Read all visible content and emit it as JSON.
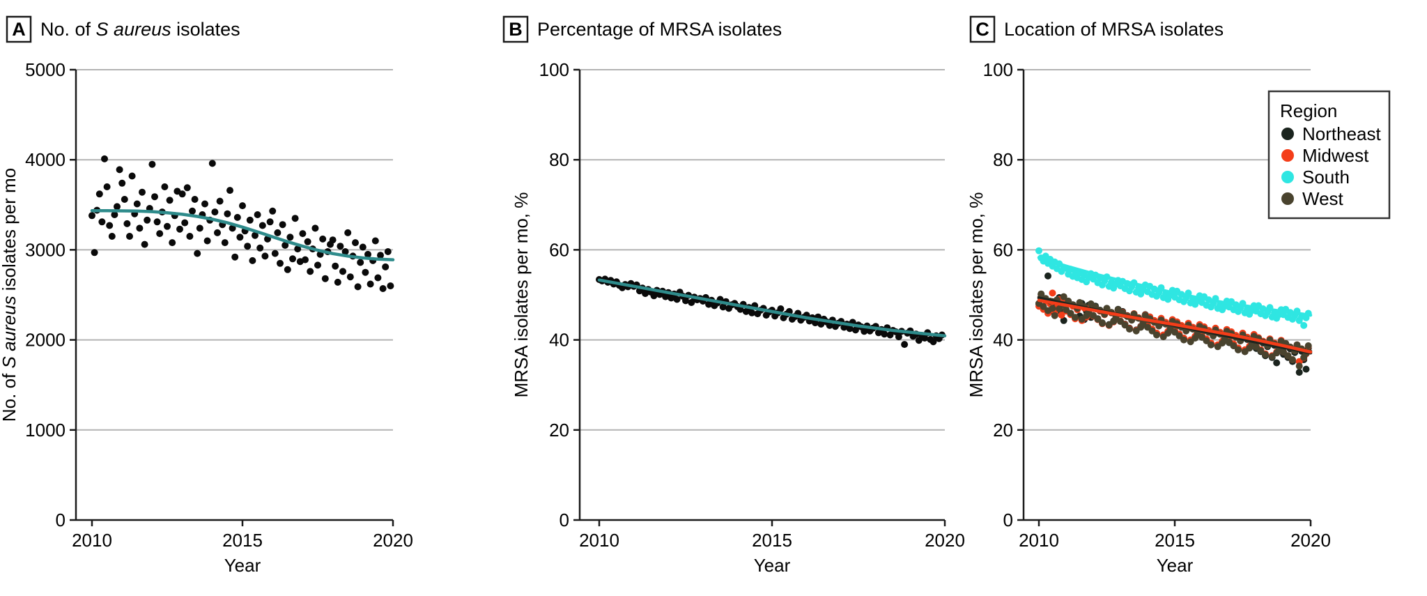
{
  "chart_data": [
    {
      "panel": "A",
      "type": "scatter",
      "title_parts": [
        {
          "t": "No. of "
        },
        {
          "t": "S aureus",
          "i": true
        },
        {
          "t": " isolates"
        }
      ],
      "xlabel": "Year",
      "ylabel_parts": [
        {
          "t": "No. of "
        },
        {
          "t": "S aureus",
          "i": true
        },
        {
          "t": " isolates per mo"
        }
      ],
      "xlim": [
        2010,
        2020
      ],
      "ylim": [
        0,
        5000
      ],
      "xticks": [
        2010,
        2015,
        2020
      ],
      "yticks": [
        0,
        1000,
        2000,
        3000,
        4000,
        5000
      ],
      "grid": true,
      "point_color": "#0a0a0a",
      "trend_color": "#2e8b8b",
      "x_start": 2010,
      "x_step": 0.0833333,
      "points": [
        3380,
        2970,
        3440,
        3620,
        3310,
        4010,
        3700,
        3270,
        3150,
        3390,
        3480,
        3890,
        3740,
        3560,
        3290,
        3150,
        3820,
        3400,
        3510,
        3240,
        3640,
        3060,
        3330,
        3460,
        3950,
        3590,
        3310,
        3180,
        3420,
        3700,
        3260,
        3550,
        3080,
        3380,
        3650,
        3230,
        3620,
        3300,
        3690,
        3150,
        3430,
        3560,
        2960,
        3240,
        3390,
        3510,
        3100,
        3330,
        3960,
        3420,
        3190,
        3540,
        3280,
        3080,
        3400,
        3660,
        3240,
        2920,
        3360,
        3140,
        3490,
        3210,
        3040,
        3330,
        2880,
        3160,
        3390,
        3020,
        3270,
        2930,
        3120,
        3310,
        3430,
        2960,
        3190,
        2850,
        3280,
        3050,
        2780,
        3140,
        2900,
        3350,
        3010,
        2870,
        3180,
        2890,
        3090,
        2760,
        3010,
        3240,
        2830,
        2950,
        3120,
        2680,
        2980,
        3060,
        3110,
        2820,
        2640,
        3040,
        2760,
        2980,
        3190,
        2700,
        2930,
        3080,
        2590,
        2860,
        3030,
        2750,
        2950,
        2620,
        2880,
        3100,
        2690,
        2940,
        2570,
        2810,
        2980,
        2600
      ],
      "trend": {
        "x_start": 2010,
        "x_step": 0.5,
        "values": [
          3435,
          3435,
          3433,
          3430,
          3424,
          3412,
          3395,
          3371,
          3340,
          3300,
          3252,
          3200,
          3145,
          3090,
          3040,
          2995,
          2958,
          2930,
          2910,
          2897,
          2890
        ]
      }
    },
    {
      "panel": "B",
      "type": "scatter",
      "title_parts": [
        {
          "t": "Percentage of MRSA isolates"
        }
      ],
      "xlabel": "Year",
      "ylabel_parts": [
        {
          "t": "MRSA isolates per mo, %"
        }
      ],
      "xlim": [
        2010,
        2020
      ],
      "ylim": [
        0,
        100
      ],
      "xticks": [
        2010,
        2015,
        2020
      ],
      "yticks": [
        0,
        20,
        40,
        60,
        80,
        100
      ],
      "grid": true,
      "point_color": "#0a0a0a",
      "trend_color": "#2e8b8b",
      "x_start": 2010,
      "x_step": 0.0833333,
      "points": [
        53.4,
        53.1,
        53.5,
        52.8,
        53.2,
        52.4,
        52.9,
        52.1,
        51.6,
        52.3,
        51.8,
        52.5,
        51.9,
        52.2,
        50.9,
        51.5,
        50.3,
        51.2,
        50.6,
        49.8,
        51.0,
        50.1,
        50.8,
        49.6,
        50.5,
        49.3,
        50.2,
        49.0,
        50.6,
        49.7,
        48.7,
        49.9,
        48.3,
        49.5,
        48.9,
        49.2,
        48.6,
        49.4,
        47.9,
        48.8,
        47.6,
        48.2,
        49.0,
        47.3,
        48.5,
        47.0,
        47.8,
        48.1,
        47.4,
        46.8,
        47.9,
        46.3,
        47.2,
        46.0,
        47.6,
        45.8,
        46.6,
        47.0,
        45.5,
        46.2,
        46.6,
        45.3,
        46.0,
        46.9,
        44.9,
        45.7,
        46.3,
        44.6,
        45.2,
        45.9,
        44.4,
        45.0,
        45.5,
        44.2,
        44.9,
        43.8,
        45.1,
        43.5,
        44.6,
        44.0,
        43.2,
        44.4,
        43.0,
        43.7,
        44.1,
        42.8,
        43.5,
        42.5,
        43.9,
        42.2,
        43.3,
        42.9,
        41.9,
        43.1,
        42.0,
        42.6,
        43.0,
        41.6,
        42.3,
        41.3,
        42.7,
        41.1,
        42.1,
        41.8,
        40.7,
        41.9,
        39.0,
        41.5,
        42.0,
        40.8,
        41.3,
        39.9,
        41.0,
        40.4,
        41.6,
        40.1,
        39.6,
        40.9,
        40.3,
        41.1
      ],
      "trend": {
        "x_start": 2010,
        "x_step": 0.5,
        "values": [
          53.3,
          52.6,
          51.9,
          51.2,
          50.5,
          49.8,
          49.1,
          48.4,
          47.7,
          47.0,
          46.3,
          45.6,
          44.9,
          44.3,
          43.7,
          43.1,
          42.6,
          42.1,
          41.7,
          41.3,
          40.9
        ]
      }
    },
    {
      "panel": "C",
      "type": "scatter",
      "title_parts": [
        {
          "t": "Location of MRSA isolates"
        }
      ],
      "xlabel": "Year",
      "ylabel_parts": [
        {
          "t": "MRSA isolates per mo, %"
        }
      ],
      "xlim": [
        2010,
        2020
      ],
      "ylim": [
        0,
        100
      ],
      "xticks": [
        2010,
        2015,
        2020
      ],
      "yticks": [
        0,
        20,
        40,
        60,
        80,
        100
      ],
      "grid": true,
      "legend": {
        "title": "Region",
        "position": "top-right"
      },
      "x_start": 2010,
      "x_step": 0.0833333,
      "series": [
        {
          "name": "Northeast",
          "color": "#1b241e",
          "points": [
            48.0,
            50.1,
            47.2,
            49.0,
            54.2,
            46.4,
            48.5,
            45.8,
            47.6,
            49.4,
            46.1,
            44.3,
            46.7,
            48.6,
            45.9,
            47.8,
            44.9,
            47.0,
            45.3,
            48.1,
            44.5,
            46.4,
            47.7,
            45.0,
            45.4,
            47.5,
            44.7,
            46.6,
            43.8,
            45.8,
            47.0,
            43.4,
            46.1,
            44.2,
            45.1,
            46.8,
            44.2,
            46.3,
            43.5,
            45.4,
            42.6,
            44.6,
            45.8,
            42.2,
            44.9,
            43.0,
            43.9,
            45.6,
            43.0,
            45.1,
            42.3,
            44.2,
            41.4,
            43.4,
            44.6,
            41.0,
            43.7,
            41.8,
            42.7,
            44.4,
            41.8,
            43.9,
            41.1,
            43.0,
            40.2,
            42.2,
            43.4,
            39.8,
            42.5,
            40.6,
            41.5,
            43.2,
            40.6,
            42.7,
            39.9,
            41.8,
            39.0,
            41.0,
            42.2,
            38.6,
            41.3,
            39.4,
            40.3,
            42.0,
            39.4,
            41.5,
            38.7,
            40.6,
            37.8,
            39.8,
            41.0,
            37.4,
            40.1,
            38.2,
            39.1,
            40.8,
            38.1,
            40.2,
            37.4,
            39.3,
            36.5,
            38.5,
            39.7,
            36.1,
            38.8,
            34.9,
            37.8,
            39.5,
            36.8,
            38.9,
            36.1,
            38.0,
            35.2,
            37.2,
            38.4,
            32.8,
            37.5,
            35.6,
            33.5,
            38.2
          ],
          "trend": {
            "x_start": 2010,
            "x_step": 1,
            "values": [
              49.3,
              48.0,
              46.8,
              45.6,
              44.4,
              43.2,
              42.0,
              40.8,
              39.5,
              38.3,
              37.1
            ]
          }
        },
        {
          "name": "Midwest",
          "color": "#f43d19",
          "points": [
            47.5,
            49.6,
            46.8,
            48.6,
            45.9,
            48.0,
            50.4,
            46.3,
            47.2,
            49.0,
            45.5,
            48.3,
            46.4,
            48.3,
            45.6,
            47.5,
            44.7,
            46.7,
            48.0,
            44.3,
            47.1,
            45.1,
            46.0,
            47.7,
            45.3,
            47.2,
            44.5,
            46.4,
            43.6,
            45.6,
            46.9,
            43.2,
            46.0,
            44.0,
            44.9,
            46.6,
            44.2,
            46.1,
            43.4,
            45.3,
            42.5,
            44.5,
            45.8,
            42.1,
            44.9,
            42.9,
            43.8,
            45.5,
            43.2,
            45.1,
            42.4,
            44.3,
            41.5,
            43.5,
            44.8,
            41.1,
            43.9,
            41.9,
            42.8,
            44.5,
            42.1,
            44.0,
            41.3,
            43.2,
            40.4,
            42.4,
            43.7,
            40.0,
            42.8,
            40.8,
            41.7,
            43.4,
            41.0,
            42.9,
            40.2,
            42.1,
            39.3,
            41.3,
            42.6,
            38.9,
            41.7,
            39.7,
            40.6,
            42.3,
            39.9,
            41.8,
            39.1,
            41.0,
            38.2,
            40.2,
            41.5,
            37.8,
            40.6,
            38.6,
            39.5,
            41.2,
            38.6,
            40.5,
            37.8,
            39.7,
            36.9,
            38.9,
            40.2,
            36.5,
            39.3,
            37.3,
            38.2,
            39.9,
            37.3,
            39.2,
            36.5,
            38.4,
            35.6,
            37.6,
            38.9,
            35.2,
            38.0,
            36.0,
            36.9,
            38.6
          ],
          "trend": {
            "x_start": 2010,
            "x_step": 1,
            "values": [
              48.8,
              47.7,
              46.6,
              45.5,
              44.4,
              43.4,
              42.3,
              41.2,
              40.0,
              38.7,
              37.3
            ]
          }
        },
        {
          "name": "South",
          "color": "#2fe6e2",
          "points": [
            59.8,
            58.2,
            57.5,
            58.6,
            57.0,
            57.9,
            56.4,
            57.3,
            55.8,
            56.9,
            55.2,
            56.1,
            55.9,
            54.6,
            55.7,
            54.1,
            55.2,
            53.8,
            54.9,
            53.4,
            54.4,
            52.9,
            53.9,
            54.7,
            53.5,
            54.4,
            52.7,
            53.8,
            52.2,
            53.1,
            54.0,
            51.9,
            52.8,
            51.5,
            52.4,
            53.2,
            52.0,
            53.0,
            51.4,
            52.5,
            50.9,
            51.8,
            52.7,
            50.6,
            51.6,
            50.2,
            51.1,
            52.2,
            50.7,
            51.9,
            50.1,
            51.3,
            49.7,
            50.5,
            51.6,
            49.4,
            50.3,
            49.0,
            49.9,
            51.0,
            49.5,
            50.8,
            48.9,
            50.1,
            48.5,
            49.3,
            50.4,
            48.2,
            49.1,
            47.9,
            48.7,
            49.8,
            48.3,
            49.6,
            47.7,
            48.9,
            47.3,
            48.1,
            49.2,
            47.0,
            47.9,
            46.7,
            47.5,
            48.6,
            47.3,
            48.5,
            46.7,
            47.8,
            46.3,
            47.1,
            48.1,
            46.0,
            46.9,
            45.7,
            46.5,
            47.6,
            46.4,
            47.6,
            45.8,
            46.9,
            45.4,
            46.2,
            47.2,
            45.1,
            46.0,
            44.8,
            45.6,
            46.7,
            45.6,
            46.8,
            45.0,
            46.1,
            44.6,
            45.4,
            46.4,
            44.3,
            45.2,
            43.2,
            44.9,
            45.9
          ],
          "trend": {
            "x_start": 2010,
            "x_step": 1,
            "values": [
              58.3,
              56.4,
              54.7,
              53.2,
              51.8,
              50.4,
              49.2,
              48.1,
              47.2,
              46.3,
              45.5
            ]
          }
        },
        {
          "name": "West",
          "color": "#49432e",
          "points": [
            48.1,
            50.2,
            47.4,
            49.2,
            46.5,
            48.6,
            47.0,
            45.4,
            48.9,
            46.9,
            47.8,
            49.6,
            46.7,
            48.6,
            45.9,
            47.8,
            45.0,
            47.0,
            48.3,
            44.6,
            47.4,
            45.4,
            46.3,
            48.0,
            45.4,
            47.3,
            44.6,
            46.5,
            43.7,
            45.7,
            47.0,
            43.3,
            46.1,
            44.1,
            45.0,
            46.7,
            44.1,
            46.0,
            43.3,
            45.2,
            42.4,
            44.4,
            45.7,
            42.0,
            44.8,
            42.8,
            43.7,
            45.4,
            42.8,
            44.7,
            42.0,
            43.9,
            41.1,
            43.1,
            44.4,
            40.7,
            43.5,
            41.5,
            42.4,
            44.1,
            41.7,
            43.6,
            40.9,
            42.8,
            40.0,
            42.0,
            43.3,
            39.6,
            42.4,
            40.4,
            41.3,
            43.0,
            40.6,
            42.5,
            39.8,
            41.7,
            38.9,
            40.9,
            42.2,
            38.5,
            41.3,
            39.3,
            40.2,
            41.9,
            39.5,
            41.4,
            38.7,
            40.6,
            37.8,
            39.8,
            41.1,
            37.4,
            40.2,
            38.2,
            39.1,
            40.8,
            38.4,
            40.3,
            37.6,
            39.5,
            36.7,
            38.7,
            40.0,
            36.3,
            39.1,
            37.1,
            38.0,
            39.7,
            37.3,
            39.2,
            36.5,
            38.4,
            35.6,
            37.6,
            38.9,
            34.2,
            38.0,
            36.1,
            37.0,
            38.7
          ],
          "trend": {
            "x_start": 2010,
            "x_step": 1,
            "values": [
              49.5,
              48.1,
              46.7,
              45.4,
              44.1,
              42.9,
              41.8,
              40.7,
              39.6,
              38.5,
              37.5
            ]
          }
        }
      ]
    }
  ],
  "colors": {
    "axis": "#1a1a1a",
    "grid": "#b3b3b3",
    "trend_teal": "#2e8b8b",
    "legend_border": "#333333"
  }
}
